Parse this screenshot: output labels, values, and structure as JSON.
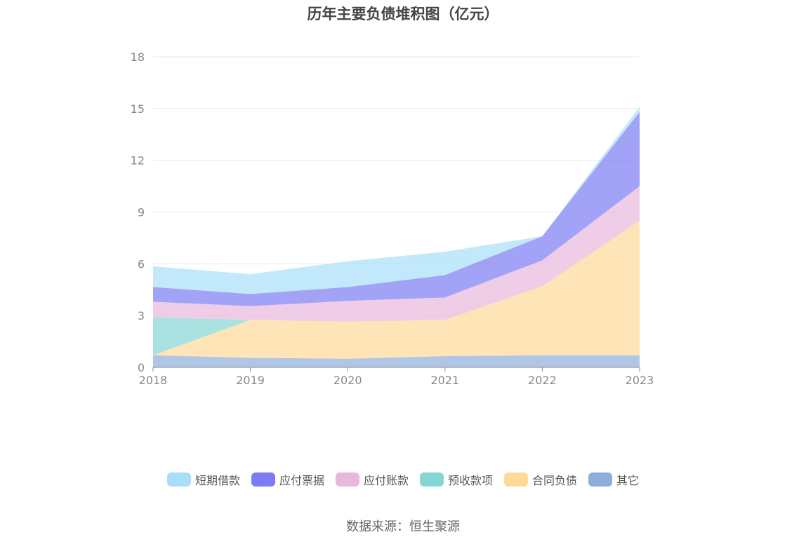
{
  "chart_data": {
    "type": "area",
    "stacked": true,
    "title": "历年主要负债堆积图（亿元）",
    "categories": [
      "2018",
      "2019",
      "2020",
      "2021",
      "2022",
      "2023"
    ],
    "ylim": [
      0,
      18
    ],
    "yticks": [
      0,
      3,
      6,
      9,
      12,
      15,
      18
    ],
    "grid": true,
    "legend_position": "bottom",
    "series": [
      {
        "name": "其它",
        "color": "#8DAEDB",
        "values": [
          0.7,
          0.55,
          0.5,
          0.65,
          0.7,
          0.7
        ]
      },
      {
        "name": "合同负债",
        "color": "#FFD998",
        "values": [
          0,
          2.2,
          2.15,
          2.1,
          4.0,
          7.8
        ]
      },
      {
        "name": "预收款项",
        "color": "#86D6D6",
        "values": [
          2.2,
          0,
          0,
          0,
          0,
          0
        ]
      },
      {
        "name": "应付账款",
        "color": "#E8B8DC",
        "values": [
          0.9,
          0.8,
          1.2,
          1.3,
          1.5,
          2.0
        ]
      },
      {
        "name": "应付票据",
        "color": "#7B7CF2",
        "values": [
          0.85,
          0.7,
          0.8,
          1.3,
          1.4,
          4.3
        ]
      },
      {
        "name": "短期借款",
        "color": "#A8DEFA",
        "values": [
          1.2,
          1.15,
          1.5,
          1.35,
          0,
          0.3
        ]
      }
    ]
  },
  "legend_order": [
    "短期借款",
    "应付票据",
    "应付账款",
    "预收款项",
    "合同负债",
    "其它"
  ],
  "source": "数据来源：恒生聚源"
}
